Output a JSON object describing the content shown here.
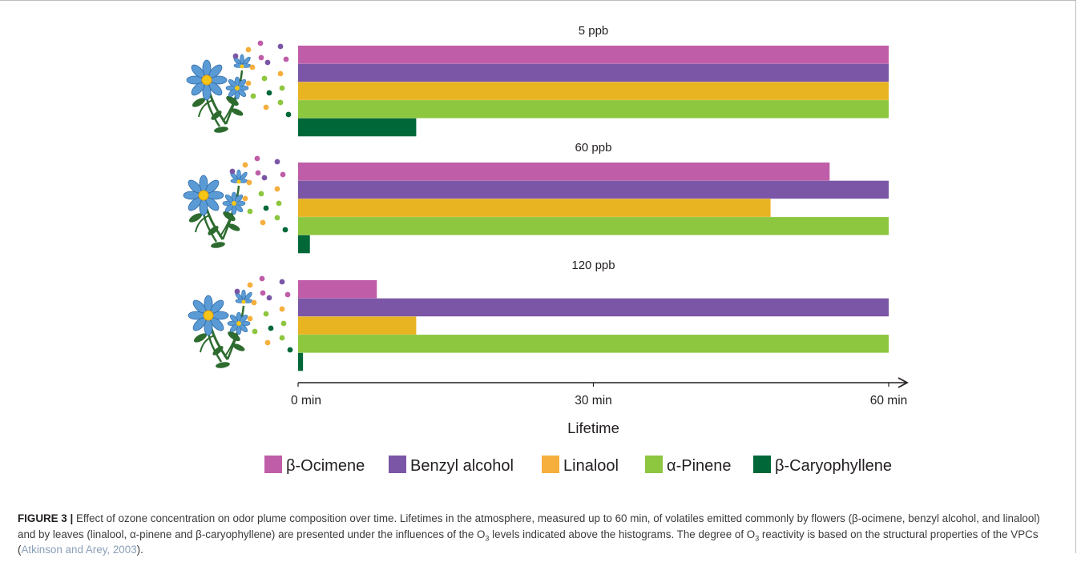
{
  "chart_data": {
    "type": "bar",
    "orientation": "horizontal",
    "categories": [
      "β-Ocimene",
      "Benzyl alcohol",
      "Linalool",
      "α-Pinene",
      "β-Caryophyllene"
    ],
    "panels": [
      {
        "title": "5 ppb",
        "values": [
          60,
          60,
          60,
          60,
          12
        ]
      },
      {
        "title": "60 ppb",
        "values": [
          54,
          60,
          48,
          60,
          1.2
        ]
      },
      {
        "title": "120 ppb",
        "values": [
          8,
          60,
          12,
          60,
          0.5
        ]
      }
    ],
    "xlim": [
      0,
      60
    ],
    "xticks": [
      0,
      30,
      60
    ],
    "tick_labels": [
      "0 min",
      "30 min",
      "60 min"
    ],
    "xlabel": "Lifetime",
    "legend": {
      "placement": "bottom",
      "entries": [
        "β-Ocimene",
        "Benzyl alcohol",
        "Linalool",
        "α-Pinene",
        "β-Caryophyllene"
      ],
      "colors": [
        "#c05da8",
        "#7b56a6",
        "#f6ae3c",
        "#8dc63f",
        "#006838"
      ]
    },
    "bar_colors": [
      "#c05da8",
      "#7b56a6",
      "#e8b422",
      "#8dc63f",
      "#006838"
    ],
    "illustration": "flower-icon"
  },
  "caption": {
    "label": "FIGURE 3 |",
    "p1": " Effect of ozone concentration on odor plume composition over time. Lifetimes in the atmosphere, measured up to 60 min, of volatiles emitted commonly by flowers (β-ocimene, benzyl alcohol, and linalool) and by leaves (linalool, α-pinene and β-caryophyllene) are presented under the influences of the O",
    "sub1": "3",
    "p2": " levels indicated above the histograms. The degree of O",
    "sub2": "3",
    "p3": " reactivity is based on the structural properties of the VPCs (",
    "ref": "Atkinson and Arey, 2003",
    "p4": ")."
  }
}
